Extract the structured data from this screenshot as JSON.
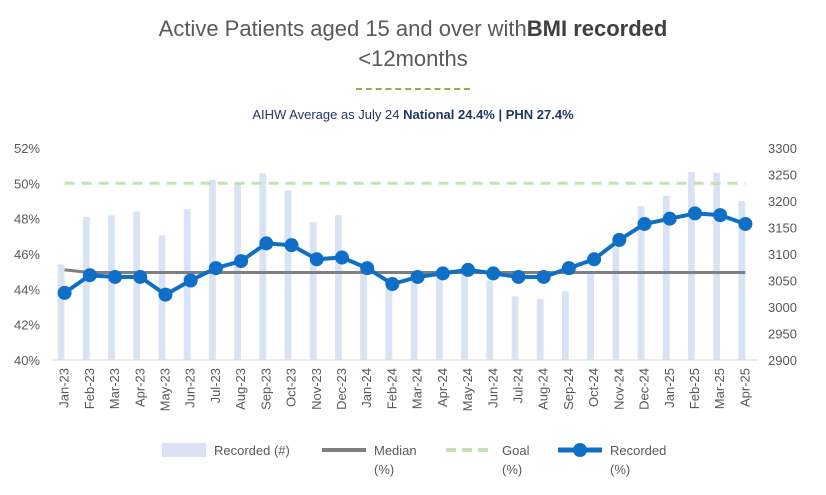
{
  "title": {
    "prefix": "Active Patients aged 15 and over with",
    "bold": "BMI recorded",
    "line2": "<12months"
  },
  "subtitle": {
    "prefix": "AIHW Average as July 24 ",
    "national": "National 24.4%",
    "sep": " | ",
    "phn": "PHN 27.4%"
  },
  "chart_data": {
    "type": "bar+line",
    "categories": [
      "Jan-23",
      "Feb-23",
      "Mar-23",
      "Apr-23",
      "May-23",
      "Jun-23",
      "Jul-23",
      "Aug-23",
      "Sep-23",
      "Oct-23",
      "Nov-23",
      "Dec-23",
      "Jan-24",
      "Feb-24",
      "Mar-24",
      "Apr-24",
      "May-24",
      "Jun-24",
      "Jul-24",
      "Aug-24",
      "Sep-24",
      "Oct-24",
      "Nov-24",
      "Dec-24",
      "Jan-25",
      "Feb-25",
      "Mar-25",
      "Apr-25"
    ],
    "left_axis": {
      "ylim": [
        40,
        52
      ],
      "ticks": [
        "40%",
        "42%",
        "44%",
        "46%",
        "48%",
        "50%",
        "52%"
      ]
    },
    "right_axis": {
      "ylim": [
        2900,
        3300
      ],
      "ticks": [
        "2900",
        "2950",
        "3000",
        "3050",
        "3100",
        "3150",
        "3200",
        "3250",
        "3300"
      ]
    },
    "series": [
      {
        "name": "Recorded (#)",
        "axis": "right",
        "type": "bar",
        "color": "#dae3f3",
        "values": [
          3080,
          3170,
          3173,
          3180,
          3135,
          3185,
          3240,
          3235,
          3252,
          3220,
          3160,
          3173,
          3075,
          3040,
          3058,
          3055,
          3070,
          3050,
          3020,
          3015,
          3030,
          3065,
          3125,
          3190,
          3210,
          3255,
          3253,
          3200
        ]
      },
      {
        "name": "Median (%)",
        "axis": "left",
        "type": "line",
        "color": "#7f7f7f",
        "values": [
          45.1,
          44.95,
          44.95,
          44.95,
          44.95,
          44.95,
          44.95,
          44.95,
          44.95,
          44.95,
          44.95,
          44.95,
          44.95,
          44.95,
          44.95,
          44.95,
          44.95,
          44.95,
          44.95,
          44.95,
          44.95,
          44.95,
          44.95,
          44.95,
          44.95,
          44.95,
          44.95,
          44.95
        ]
      },
      {
        "name": "Goal (%)",
        "axis": "left",
        "type": "dashed-line",
        "color": "#c5e0b4",
        "values": [
          50,
          50,
          50,
          50,
          50,
          50,
          50,
          50,
          50,
          50,
          50,
          50,
          50,
          50,
          50,
          50,
          50,
          50,
          50,
          50,
          50,
          50,
          50,
          50,
          50,
          50,
          50,
          50
        ]
      },
      {
        "name": "Recorded (%)",
        "axis": "left",
        "type": "line-markers",
        "color": "#0f6fc6",
        "values": [
          43.8,
          44.8,
          44.7,
          44.7,
          43.7,
          44.5,
          45.2,
          45.6,
          46.6,
          46.5,
          45.7,
          45.8,
          45.2,
          44.3,
          44.7,
          44.9,
          45.1,
          44.9,
          44.7,
          44.7,
          45.2,
          45.7,
          46.8,
          47.7,
          48.0,
          48.3,
          48.2,
          47.7
        ]
      }
    ],
    "legend": {
      "position": "bottom",
      "items": [
        {
          "line1": "Recorded (#)",
          "line2": ""
        },
        {
          "line1": "Median",
          "line2": "(%)"
        },
        {
          "line1": "Goal",
          "line2": "(%)"
        },
        {
          "line1": "Recorded",
          "line2": "(%)"
        }
      ]
    },
    "grid": false
  }
}
